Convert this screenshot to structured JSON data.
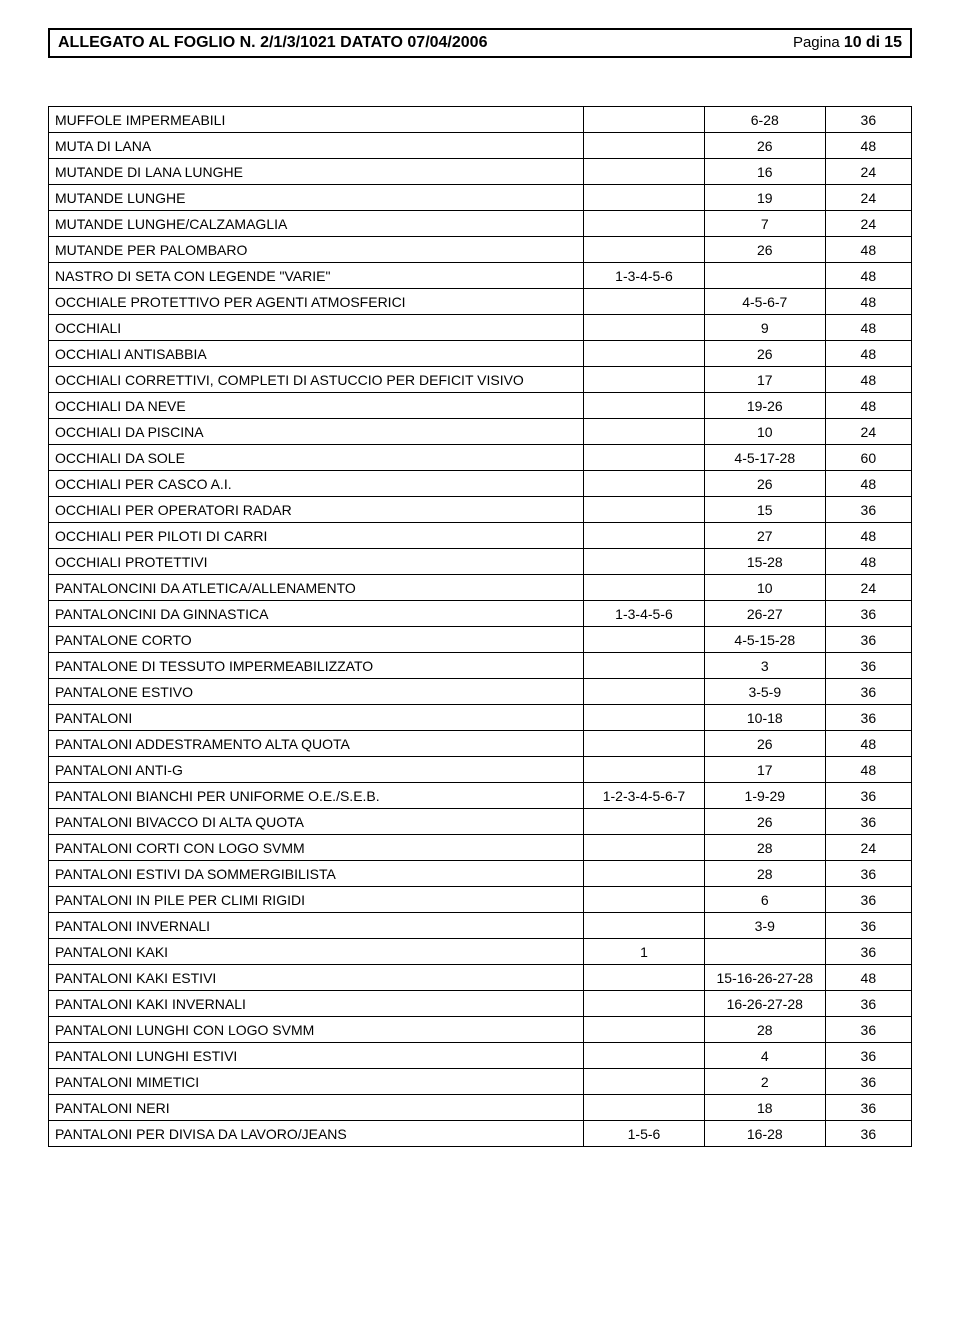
{
  "header": {
    "title": "ALLEGATO AL FOGLIO N. 2/1/3/1021 DATATO 07/04/2006",
    "page_label": "Pagina",
    "page_num": "10",
    "di": "di",
    "page_total": "15"
  },
  "table": {
    "columns": [
      "name",
      "c1",
      "c2",
      "c3"
    ],
    "col_widths_pct": [
      62,
      14,
      14,
      10
    ],
    "font_size_pt": 11,
    "border_color": "#000000",
    "rows": [
      [
        "MUFFOLE IMPERMEABILI",
        "",
        "6-28",
        "36"
      ],
      [
        "MUTA DI LANA",
        "",
        "26",
        "48"
      ],
      [
        "MUTANDE DI LANA LUNGHE",
        "",
        "16",
        "24"
      ],
      [
        "MUTANDE LUNGHE",
        "",
        "19",
        "24"
      ],
      [
        "MUTANDE LUNGHE/CALZAMAGLIA",
        "",
        "7",
        "24"
      ],
      [
        "MUTANDE PER PALOMBARO",
        "",
        "26",
        "48"
      ],
      [
        "NASTRO DI SETA CON LEGENDE \"VARIE\"",
        "1-3-4-5-6",
        "",
        "48"
      ],
      [
        "OCCHIALE PROTETTIVO PER AGENTI ATMOSFERICI",
        "",
        "4-5-6-7",
        "48"
      ],
      [
        "OCCHIALI",
        "",
        "9",
        "48"
      ],
      [
        "OCCHIALI ANTISABBIA",
        "",
        "26",
        "48"
      ],
      [
        "OCCHIALI CORRETTIVI, COMPLETI DI ASTUCCIO PER DEFICIT VISIVO",
        "",
        "17",
        "48"
      ],
      [
        "OCCHIALI DA NEVE",
        "",
        "19-26",
        "48"
      ],
      [
        "OCCHIALI DA PISCINA",
        "",
        "10",
        "24"
      ],
      [
        "OCCHIALI DA SOLE",
        "",
        "4-5-17-28",
        "60"
      ],
      [
        "OCCHIALI PER CASCO A.I.",
        "",
        "26",
        "48"
      ],
      [
        "OCCHIALI PER OPERATORI RADAR",
        "",
        "15",
        "36"
      ],
      [
        "OCCHIALI PER PILOTI DI CARRI",
        "",
        "27",
        "48"
      ],
      [
        "OCCHIALI PROTETTIVI",
        "",
        "15-28",
        "48"
      ],
      [
        "PANTALONCINI DA ATLETICA/ALLENAMENTO",
        "",
        "10",
        "24"
      ],
      [
        "PANTALONCINI DA GINNASTICA",
        "1-3-4-5-6",
        "26-27",
        "36"
      ],
      [
        "PANTALONE CORTO",
        "",
        "4-5-15-28",
        "36"
      ],
      [
        "PANTALONE DI TESSUTO IMPERMEABILIZZATO",
        "",
        "3",
        "36"
      ],
      [
        "PANTALONE ESTIVO",
        "",
        "3-5-9",
        "36"
      ],
      [
        "PANTALONI",
        "",
        "10-18",
        "36"
      ],
      [
        "PANTALONI ADDESTRAMENTO ALTA QUOTA",
        "",
        "26",
        "48"
      ],
      [
        "PANTALONI ANTI-G",
        "",
        "17",
        "48"
      ],
      [
        "PANTALONI BIANCHI PER UNIFORME O.E./S.E.B.",
        "1-2-3-4-5-6-7",
        "1-9-29",
        "36"
      ],
      [
        "PANTALONI BIVACCO DI ALTA QUOTA",
        "",
        "26",
        "36"
      ],
      [
        "PANTALONI CORTI CON LOGO SVMM",
        "",
        "28",
        "24"
      ],
      [
        "PANTALONI ESTIVI DA SOMMERGIBILISTA",
        "",
        "28",
        "36"
      ],
      [
        "PANTALONI IN PILE PER CLIMI RIGIDI",
        "",
        "6",
        "36"
      ],
      [
        "PANTALONI INVERNALI",
        "",
        "3-9",
        "36"
      ],
      [
        "PANTALONI KAKI",
        "1",
        "",
        "36"
      ],
      [
        "PANTALONI KAKI ESTIVI",
        "",
        "15-16-26-27-28",
        "48"
      ],
      [
        "PANTALONI KAKI INVERNALI",
        "",
        "16-26-27-28",
        "36"
      ],
      [
        "PANTALONI LUNGHI CON LOGO SVMM",
        "",
        "28",
        "36"
      ],
      [
        "PANTALONI LUNGHI ESTIVI",
        "",
        "4",
        "36"
      ],
      [
        "PANTALONI MIMETICI",
        "",
        "2",
        "36"
      ],
      [
        "PANTALONI NERI",
        "",
        "18",
        "36"
      ],
      [
        "PANTALONI PER DIVISA DA LAVORO/JEANS",
        "1-5-6",
        "16-28",
        "36"
      ]
    ]
  }
}
